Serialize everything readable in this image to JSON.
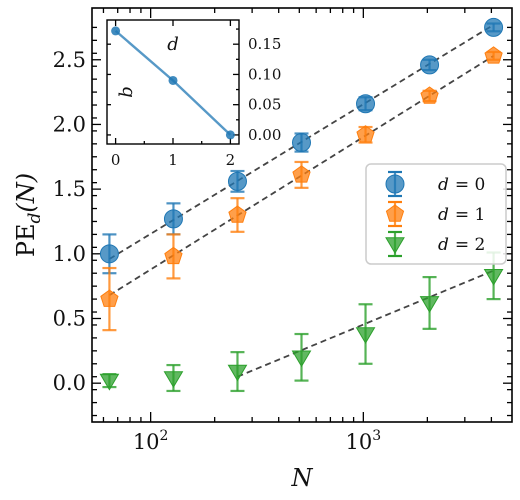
{
  "chart_data": [
    {
      "type": "scatter",
      "xlabel": "N",
      "ylabel": "PE",
      "ylabel_sub": "d",
      "ylabel_arg": "(N)",
      "xscale": "log",
      "xlim": [
        53,
        5000
      ],
      "ylim": [
        -0.3,
        2.9
      ],
      "yticks": [
        0.0,
        0.5,
        1.0,
        1.5,
        2.0,
        2.5
      ],
      "ytick_labels": [
        "0.0",
        "0.5",
        "1.0",
        "1.5",
        "2.0",
        "2.5"
      ],
      "xticks": [
        100,
        1000
      ],
      "xtick_base": "10",
      "xtick_exponents": [
        "2",
        "3"
      ],
      "legend_position": "center-right",
      "series": [
        {
          "name": "d = 0",
          "legend_var": "d",
          "legend_value": "= 0",
          "marker": "circle",
          "color": "#1f77b4",
          "x": [
            64,
            128,
            256,
            512,
            1024,
            2048,
            4096
          ],
          "y": [
            1.0,
            1.27,
            1.56,
            1.86,
            2.16,
            2.46,
            2.75
          ],
          "err": [
            0.15,
            0.12,
            0.08,
            0.07,
            0.05,
            0.04,
            0.03
          ]
        },
        {
          "name": "d = 1",
          "legend_var": "d",
          "legend_value": "= 1",
          "marker": "pentagon",
          "color": "#ff7f0e",
          "x": [
            64,
            128,
            256,
            512,
            1024,
            2048,
            4096
          ],
          "y": [
            0.65,
            0.98,
            1.3,
            1.61,
            1.92,
            2.22,
            2.53
          ],
          "err": [
            0.24,
            0.17,
            0.13,
            0.1,
            0.06,
            0.04,
            0.03
          ]
        },
        {
          "name": "d = 2",
          "legend_var": "d",
          "legend_value": "= 2",
          "marker": "triangle-down",
          "color": "#2ca02c",
          "x": [
            64,
            128,
            256,
            512,
            1024,
            2048,
            4096
          ],
          "y": [
            0.02,
            0.04,
            0.09,
            0.2,
            0.38,
            0.62,
            0.83
          ],
          "err": [
            0.05,
            0.1,
            0.15,
            0.18,
            0.23,
            0.2,
            0.18
          ]
        }
      ],
      "fits": [
        {
          "x": [
            64,
            4096
          ],
          "y": [
            0.96,
            2.77
          ]
        },
        {
          "x": [
            64,
            4096
          ],
          "y": [
            0.68,
            2.53
          ]
        },
        {
          "x": [
            256,
            4096
          ],
          "y": [
            0.05,
            0.87
          ]
        }
      ]
    },
    {
      "type": "line",
      "xlabel": "b",
      "ylabel": "",
      "annotation": "d",
      "xlim": [
        -0.15,
        2.15
      ],
      "ylim": [
        -0.015,
        0.19
      ],
      "xticks": [
        0,
        1,
        2
      ],
      "xtick_labels": [
        "0",
        "1",
        "2"
      ],
      "yticks": [
        0.0,
        0.05,
        0.1,
        0.15
      ],
      "ytick_labels": [
        "0.00",
        "0.05",
        "0.10",
        "0.15"
      ],
      "color": "#1f77b4",
      "x": [
        0,
        1,
        2
      ],
      "y": [
        0.172,
        0.09,
        0.0
      ]
    }
  ]
}
